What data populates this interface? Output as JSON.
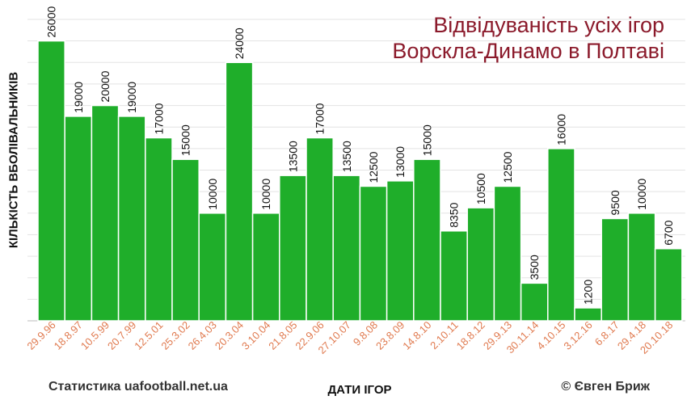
{
  "chart_data": {
    "type": "bar",
    "title_line1": "Відвідуваність усіх ігор",
    "title_line2": "Ворскла-Динамо в Полтаві",
    "xlabel": "ДАТИ ІГОР",
    "ylabel": "КІЛЬКІСТЬ ВБОЛІВАЛЬНИКІВ",
    "categories": [
      "29.9.96",
      "18.8.97",
      "10.5.99",
      "20.7.99",
      "12.5.01",
      "25.3.02",
      "26.4.03",
      "20.3.04",
      "3.10.04",
      "21.8.05",
      "22.9.06",
      "27.10.07",
      "9.8.08",
      "23.8.09",
      "14.8.10",
      "2.10.11",
      "18.8.12",
      "29.9.13",
      "30.11.14",
      "4.10.15",
      "3.12.16",
      "6.8.17",
      "29.4.18",
      "20.10.18"
    ],
    "values": [
      26000,
      19000,
      20000,
      19000,
      17000,
      15000,
      10000,
      24000,
      10000,
      13500,
      17000,
      13500,
      12500,
      13000,
      15000,
      8350,
      10500,
      12500,
      3500,
      16000,
      1200,
      9500,
      10000,
      6700
    ],
    "data_labels": [
      "26000",
      "19000",
      "20000",
      "19000",
      "17000",
      "15000",
      "10000",
      "24000",
      "10000",
      "13500",
      "17000",
      "13500",
      "12500",
      "13000",
      "15000",
      "8350",
      "10500",
      "12500",
      "3500",
      "16000",
      "1200",
      "9500",
      "10000",
      "6700"
    ],
    "ylim": [
      0,
      28000
    ],
    "grid": true,
    "bar_color": "#1fae2a",
    "bar_edge_color": "#ffffff",
    "tick_label_color": "#e07a4f",
    "title_color": "#8b1a2b"
  },
  "credits": {
    "left": "Статистика uafootball.net.ua",
    "right": "© Євген Бриж"
  }
}
